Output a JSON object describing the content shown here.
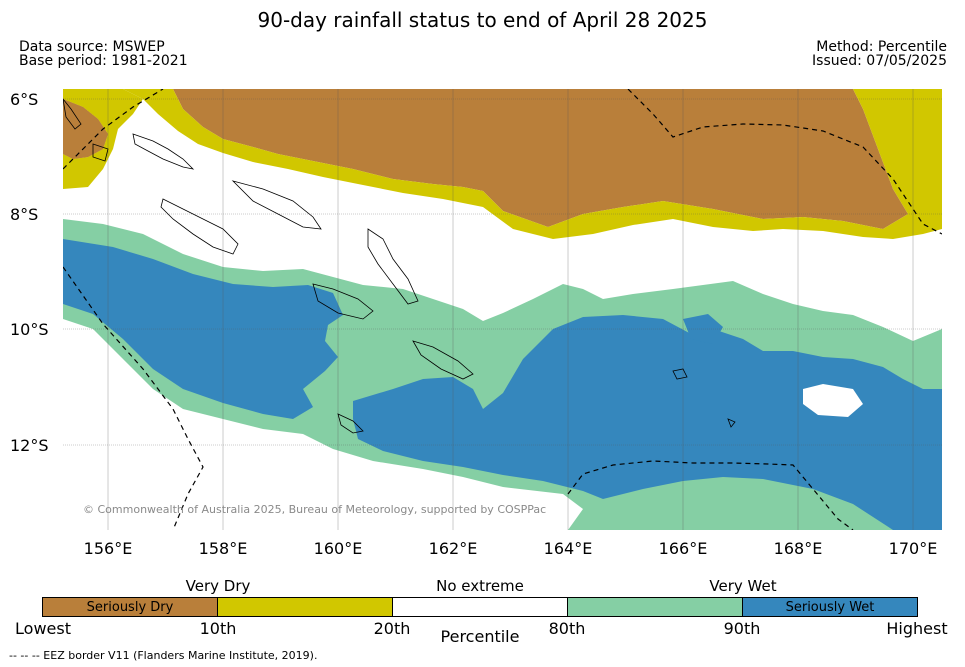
{
  "title": "90-day rainfall status to end of April 28 2025",
  "data_source": "Data source: MSWEP",
  "base_period": "Base period: 1981-2021",
  "method": "Method: Percentile",
  "issued": "Issued: 07/05/2025",
  "lat_ticks": [
    "6°S",
    "8°S",
    "10°S",
    "12°S"
  ],
  "lon_ticks": [
    "156°E",
    "158°E",
    "160°E",
    "162°E",
    "164°E",
    "166°E",
    "168°E",
    "170°E"
  ],
  "copyright": "© Commonwealth of Australia 2025, Bureau of Meteorology, supported by COSPPac",
  "legend": {
    "categories": [
      "Very Dry",
      "No extreme",
      "Very Wet"
    ],
    "segments": [
      {
        "label": "Seriously Dry",
        "color": "#b97f3a"
      },
      {
        "label": "",
        "color": "#d1c700"
      },
      {
        "label": "",
        "color": "#ffffff"
      },
      {
        "label": "",
        "color": "#85cfa4"
      },
      {
        "label": "Seriously Wet",
        "color": "#3587bd"
      }
    ],
    "ticks": [
      "Lowest",
      "10th",
      "20th",
      "80th",
      "90th",
      "Highest"
    ],
    "title": "Percentile"
  },
  "footnote": "--  --  -- EEZ border V11 (Flanders Marine Institute, 2019).",
  "colors": {
    "seriously_dry": "#b97f3a",
    "very_dry": "#d1c700",
    "no_extreme": "#ffffff",
    "very_wet": "#85cfa4",
    "seriously_wet": "#3587bd"
  }
}
